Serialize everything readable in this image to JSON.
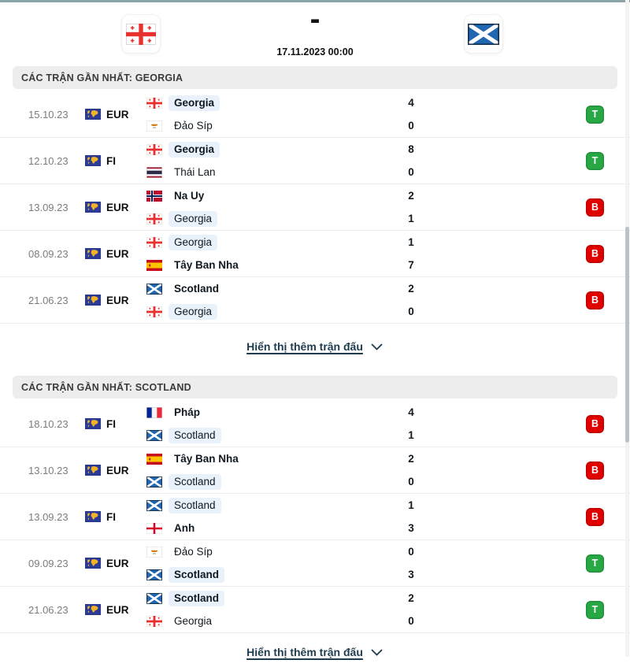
{
  "header": {
    "home_flag_icon": "flag-georgia",
    "away_flag_icon": "flag-scotland",
    "score_separator": "-",
    "kickoff_datetime": "17.11.2023 00:00"
  },
  "colors": {
    "accent_line": "#8aa3a7",
    "win_badge": "#27a844",
    "loss_badge": "#e10000",
    "section_header_bg": "#ededed",
    "team_highlight": "#e9f1fa",
    "link": "#1e3c4e"
  },
  "sections": [
    {
      "title": "CÁC TRẬN GẦN NHẤT: GEORGIA",
      "show_more_label": "Hiển thị thêm trận đấu",
      "matches": [
        {
          "date": "15.10.23",
          "competition": "EUR",
          "teams": [
            {
              "name": "Georgia",
              "flag": "flag-georgia",
              "score": "4",
              "winner": true,
              "highlight": true
            },
            {
              "name": "Đảo Síp",
              "flag": "flag-cyprus",
              "score": "0",
              "winner": false,
              "highlight": false
            }
          ],
          "result": {
            "letter": "T",
            "type": "win"
          }
        },
        {
          "date": "12.10.23",
          "competition": "FI",
          "teams": [
            {
              "name": "Georgia",
              "flag": "flag-georgia",
              "score": "8",
              "winner": true,
              "highlight": true
            },
            {
              "name": "Thái Lan",
              "flag": "flag-thailand",
              "score": "0",
              "winner": false,
              "highlight": false
            }
          ],
          "result": {
            "letter": "T",
            "type": "win"
          }
        },
        {
          "date": "13.09.23",
          "competition": "EUR",
          "teams": [
            {
              "name": "Na Uy",
              "flag": "flag-norway",
              "score": "2",
              "winner": true,
              "highlight": false
            },
            {
              "name": "Georgia",
              "flag": "flag-georgia",
              "score": "1",
              "winner": false,
              "highlight": true
            }
          ],
          "result": {
            "letter": "B",
            "type": "loss"
          }
        },
        {
          "date": "08.09.23",
          "competition": "EUR",
          "teams": [
            {
              "name": "Georgia",
              "flag": "flag-georgia",
              "score": "1",
              "winner": false,
              "highlight": true
            },
            {
              "name": "Tây Ban Nha",
              "flag": "flag-spain",
              "score": "7",
              "winner": true,
              "highlight": false
            }
          ],
          "result": {
            "letter": "B",
            "type": "loss"
          }
        },
        {
          "date": "21.06.23",
          "competition": "EUR",
          "teams": [
            {
              "name": "Scotland",
              "flag": "flag-scotland",
              "score": "2",
              "winner": true,
              "highlight": false
            },
            {
              "name": "Georgia",
              "flag": "flag-georgia",
              "score": "0",
              "winner": false,
              "highlight": true
            }
          ],
          "result": {
            "letter": "B",
            "type": "loss"
          }
        }
      ]
    },
    {
      "title": "CÁC TRẬN GẦN NHẤT: SCOTLAND",
      "show_more_label": "Hiển thị thêm trận đấu",
      "matches": [
        {
          "date": "18.10.23",
          "competition": "FI",
          "teams": [
            {
              "name": "Pháp",
              "flag": "flag-france",
              "score": "4",
              "winner": true,
              "highlight": false
            },
            {
              "name": "Scotland",
              "flag": "flag-scotland",
              "score": "1",
              "winner": false,
              "highlight": true
            }
          ],
          "result": {
            "letter": "B",
            "type": "loss"
          }
        },
        {
          "date": "13.10.23",
          "competition": "EUR",
          "teams": [
            {
              "name": "Tây Ban Nha",
              "flag": "flag-spain",
              "score": "2",
              "winner": true,
              "highlight": false
            },
            {
              "name": "Scotland",
              "flag": "flag-scotland",
              "score": "0",
              "winner": false,
              "highlight": true
            }
          ],
          "result": {
            "letter": "B",
            "type": "loss"
          }
        },
        {
          "date": "13.09.23",
          "competition": "FI",
          "teams": [
            {
              "name": "Scotland",
              "flag": "flag-scotland",
              "score": "1",
              "winner": false,
              "highlight": true
            },
            {
              "name": "Anh",
              "flag": "flag-england",
              "score": "3",
              "winner": true,
              "highlight": false
            }
          ],
          "result": {
            "letter": "B",
            "type": "loss"
          }
        },
        {
          "date": "09.09.23",
          "competition": "EUR",
          "teams": [
            {
              "name": "Đảo Síp",
              "flag": "flag-cyprus",
              "score": "0",
              "winner": false,
              "highlight": false
            },
            {
              "name": "Scotland",
              "flag": "flag-scotland",
              "score": "3",
              "winner": true,
              "highlight": true
            }
          ],
          "result": {
            "letter": "T",
            "type": "win"
          }
        },
        {
          "date": "21.06.23",
          "competition": "EUR",
          "teams": [
            {
              "name": "Scotland",
              "flag": "flag-scotland",
              "score": "2",
              "winner": true,
              "highlight": true
            },
            {
              "name": "Georgia",
              "flag": "flag-georgia",
              "score": "0",
              "winner": false,
              "highlight": false
            }
          ],
          "result": {
            "letter": "T",
            "type": "win"
          }
        }
      ]
    }
  ]
}
